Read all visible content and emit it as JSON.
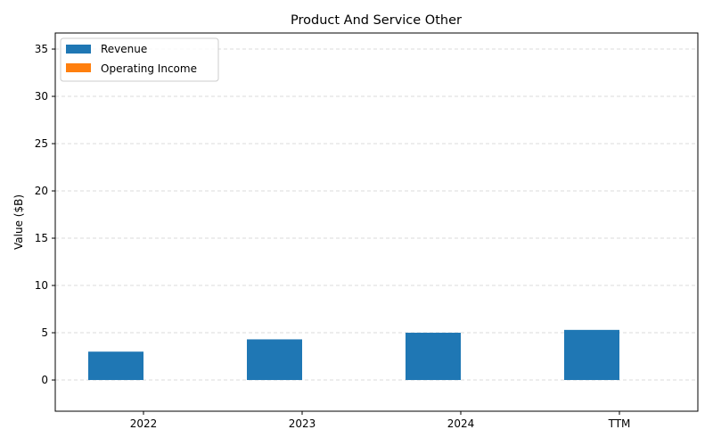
{
  "chart_data": {
    "type": "bar",
    "title": "Product And Service Other",
    "xlabel": "",
    "ylabel": "Value ($B)",
    "categories": [
      "2022",
      "2023",
      "2024",
      "TTM"
    ],
    "series": [
      {
        "name": "Revenue",
        "values": [
          3.0,
          4.3,
          5.0,
          5.3
        ],
        "color": "#1f77b4"
      },
      {
        "name": "Operating Income",
        "values": [
          0,
          0,
          0,
          0
        ],
        "color": "#ff7f0e"
      }
    ],
    "ylim": [
      -3.3,
      36.7
    ],
    "yticks": [
      0,
      5,
      10,
      15,
      20,
      25,
      30,
      35
    ],
    "grid": true,
    "legend_position": "top-left"
  }
}
